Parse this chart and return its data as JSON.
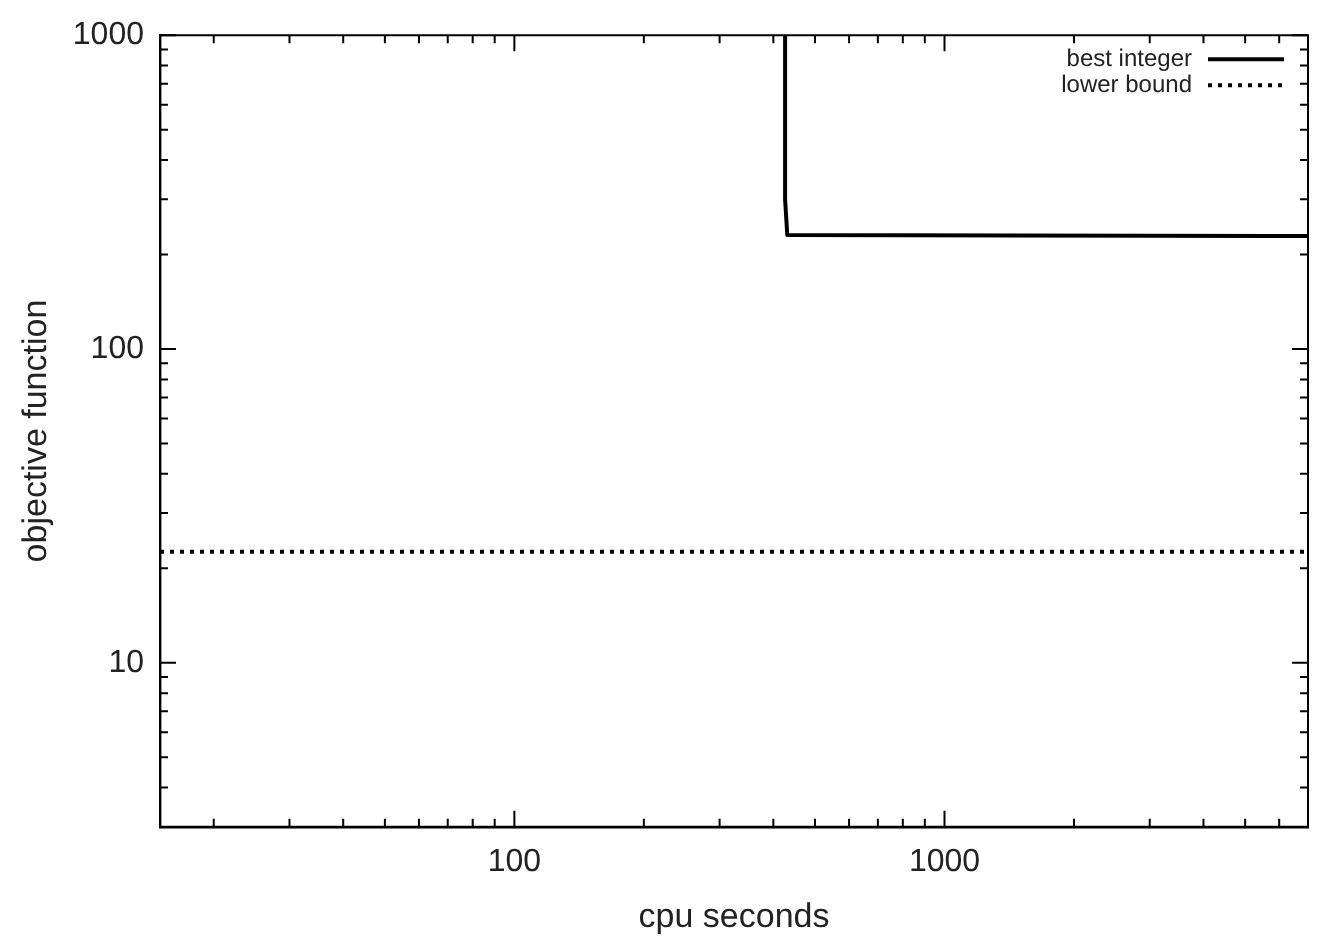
{
  "chart_data": {
    "type": "line",
    "xlabel": "cpu seconds",
    "ylabel": "objective function",
    "log": "xy",
    "xlim": [
      15,
      7000
    ],
    "ylim": [
      3,
      1000
    ],
    "xticks": [
      {
        "value": 20,
        "label": null
      },
      {
        "value": 30,
        "label": null
      },
      {
        "value": 40,
        "label": null
      },
      {
        "value": 50,
        "label": null
      },
      {
        "value": 60,
        "label": null
      },
      {
        "value": 70,
        "label": null
      },
      {
        "value": 80,
        "label": null
      },
      {
        "value": 90,
        "label": null
      },
      100,
      {
        "value": 200,
        "label": null
      },
      {
        "value": 300,
        "label": null
      },
      {
        "value": 400,
        "label": null
      },
      {
        "value": 500,
        "label": null
      },
      {
        "value": 600,
        "label": null
      },
      {
        "value": 700,
        "label": null
      },
      {
        "value": 800,
        "label": null
      },
      {
        "value": 900,
        "label": null
      },
      1000,
      {
        "value": 2000,
        "label": null
      },
      {
        "value": 3000,
        "label": null
      },
      {
        "value": 4000,
        "label": null
      },
      {
        "value": 5000,
        "label": null
      },
      {
        "value": 6000,
        "label": null
      },
      {
        "value": 7000,
        "label": null
      }
    ],
    "yticks": [
      {
        "value": 4,
        "label": null
      },
      {
        "value": 5,
        "label": null
      },
      {
        "value": 6,
        "label": null
      },
      {
        "value": 7,
        "label": null
      },
      {
        "value": 8,
        "label": null
      },
      {
        "value": 9,
        "label": null
      },
      10,
      {
        "value": 20,
        "label": null
      },
      {
        "value": 30,
        "label": null
      },
      {
        "value": 40,
        "label": null
      },
      {
        "value": 50,
        "label": null
      },
      {
        "value": 60,
        "label": null
      },
      {
        "value": 70,
        "label": null
      },
      {
        "value": 80,
        "label": null
      },
      {
        "value": 90,
        "label": null
      },
      100,
      {
        "value": 200,
        "label": null
      },
      {
        "value": 300,
        "label": null
      },
      {
        "value": 400,
        "label": null
      },
      {
        "value": 500,
        "label": null
      },
      {
        "value": 600,
        "label": null
      },
      {
        "value": 700,
        "label": null
      },
      {
        "value": 800,
        "label": null
      },
      {
        "value": 900,
        "label": null
      },
      1000
    ],
    "grid": false,
    "legend": "top right",
    "marker": "none",
    "series": [
      {
        "name": "best integer",
        "color": "#000000",
        "line_style": "solid",
        "x": [
          426,
          426,
          431,
          7000
        ],
        "values": [
          1000,
          300,
          231,
          229
        ]
      },
      {
        "name": "lower bound",
        "color": "#000000",
        "line_style": "dotted",
        "x": [
          15,
          7000
        ],
        "values": [
          22.6,
          22.6
        ]
      }
    ]
  }
}
